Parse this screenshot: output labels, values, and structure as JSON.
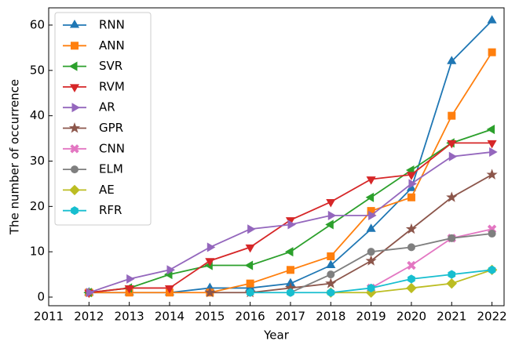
{
  "chart_data": {
    "type": "line",
    "x_label": "Year",
    "y_label": "The number of occurrence",
    "x": [
      2012,
      2013,
      2014,
      2015,
      2016,
      2017,
      2018,
      2019,
      2020,
      2021,
      2022
    ],
    "series": [
      {
        "name": "RNN",
        "color": "#1f77b4",
        "marker": "triangle-up",
        "values": [
          1,
          1,
          1,
          2,
          2,
          3,
          7,
          15,
          24,
          52,
          61
        ]
      },
      {
        "name": "ANN",
        "color": "#ff7f0e",
        "marker": "square",
        "values": [
          1,
          1,
          1,
          1,
          3,
          6,
          9,
          19,
          22,
          40,
          54
        ]
      },
      {
        "name": "SVR",
        "color": "#2ca02c",
        "marker": "triangle-left",
        "values": [
          1,
          2,
          5,
          7,
          7,
          10,
          16,
          22,
          28,
          34,
          37
        ]
      },
      {
        "name": "RVM",
        "color": "#d62728",
        "marker": "triangle-down",
        "values": [
          1,
          2,
          2,
          8,
          11,
          17,
          21,
          26,
          27,
          34,
          34
        ]
      },
      {
        "name": "AR",
        "color": "#9467bd",
        "marker": "triangle-right",
        "values": [
          1,
          4,
          6,
          11,
          15,
          16,
          18,
          18,
          25,
          31,
          32
        ]
      },
      {
        "name": "GPR",
        "color": "#8c564b",
        "marker": "star",
        "values": [
          null,
          null,
          null,
          1,
          1,
          2,
          3,
          8,
          15,
          22,
          27
        ]
      },
      {
        "name": "CNN",
        "color": "#e377c2",
        "marker": "x",
        "values": [
          null,
          null,
          null,
          null,
          null,
          null,
          null,
          2,
          7,
          13,
          15
        ]
      },
      {
        "name": "ELM",
        "color": "#7f7f7f",
        "marker": "circle",
        "values": [
          null,
          null,
          null,
          null,
          null,
          1,
          5,
          10,
          11,
          13,
          14
        ]
      },
      {
        "name": "AE",
        "color": "#bcbd22",
        "marker": "diamond",
        "values": [
          null,
          null,
          null,
          null,
          null,
          null,
          1,
          1,
          2,
          3,
          6
        ]
      },
      {
        "name": "RFR",
        "color": "#17becf",
        "marker": "hexagon",
        "values": [
          null,
          null,
          null,
          null,
          1,
          1,
          1,
          2,
          4,
          5,
          6
        ]
      }
    ],
    "xlim": [
      2011,
      2022.3
    ],
    "ylim": [
      -1.9,
      63.8
    ],
    "xticks": [
      2011,
      2012,
      2013,
      2014,
      2015,
      2016,
      2017,
      2018,
      2019,
      2020,
      2021,
      2022
    ],
    "yticks": [
      0,
      10,
      20,
      30,
      40,
      50,
      60
    ],
    "legend": "upper left",
    "grid": false
  }
}
